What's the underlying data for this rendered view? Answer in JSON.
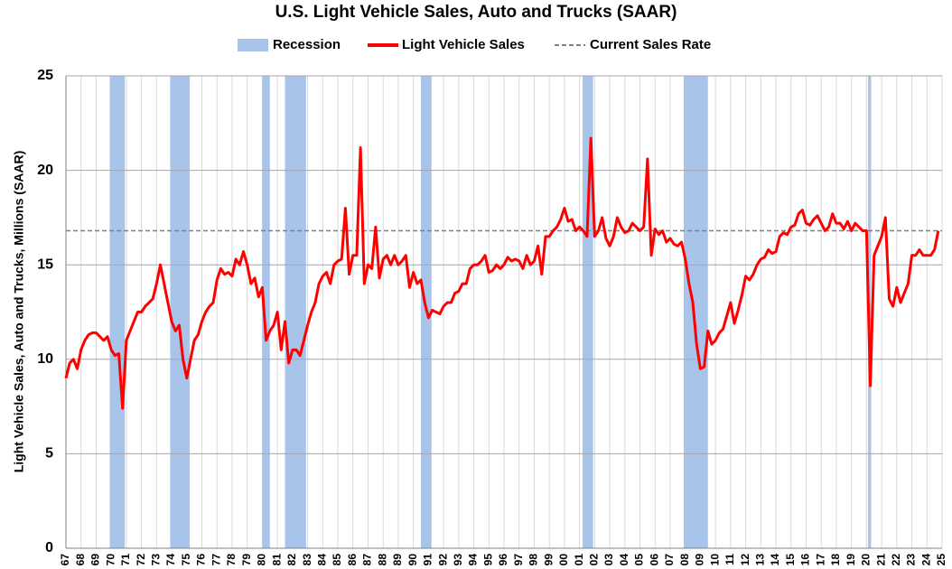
{
  "chart_data": {
    "type": "line",
    "title": "U.S. Light Vehicle Sales, Auto and Trucks (SAAR)",
    "y_label": "Light Vehicle Sales, Auto and Trucks, Millions (SAAR)",
    "ylim": [
      0,
      25
    ],
    "yticks": [
      0,
      5,
      10,
      15,
      20,
      25
    ],
    "grid": true,
    "xlim": [
      1967,
      2025
    ],
    "xticks": [
      {
        "value": 1967,
        "label": "67"
      },
      {
        "value": 1968,
        "label": "68"
      },
      {
        "value": 1969,
        "label": "69"
      },
      {
        "value": 1970,
        "label": "70"
      },
      {
        "value": 1971,
        "label": "71"
      },
      {
        "value": 1972,
        "label": "72"
      },
      {
        "value": 1973,
        "label": "73"
      },
      {
        "value": 1974,
        "label": "74"
      },
      {
        "value": 1975,
        "label": "75"
      },
      {
        "value": 1976,
        "label": "76"
      },
      {
        "value": 1977,
        "label": "77"
      },
      {
        "value": 1978,
        "label": "78"
      },
      {
        "value": 1979,
        "label": "79"
      },
      {
        "value": 1980,
        "label": "80"
      },
      {
        "value": 1981,
        "label": "81"
      },
      {
        "value": 1982,
        "label": "82"
      },
      {
        "value": 1983,
        "label": "83"
      },
      {
        "value": 1984,
        "label": "84"
      },
      {
        "value": 1985,
        "label": "85"
      },
      {
        "value": 1986,
        "label": "86"
      },
      {
        "value": 1987,
        "label": "87"
      },
      {
        "value": 1988,
        "label": "88"
      },
      {
        "value": 1989,
        "label": "89"
      },
      {
        "value": 1990,
        "label": "90"
      },
      {
        "value": 1991,
        "label": "91"
      },
      {
        "value": 1992,
        "label": "92"
      },
      {
        "value": 1993,
        "label": "93"
      },
      {
        "value": 1994,
        "label": "94"
      },
      {
        "value": 1995,
        "label": "95"
      },
      {
        "value": 1996,
        "label": "96"
      },
      {
        "value": 1997,
        "label": "97"
      },
      {
        "value": 1998,
        "label": "98"
      },
      {
        "value": 1999,
        "label": "99"
      },
      {
        "value": 2000,
        "label": "00"
      },
      {
        "value": 2001,
        "label": "01"
      },
      {
        "value": 2002,
        "label": "02"
      },
      {
        "value": 2003,
        "label": "03"
      },
      {
        "value": 2004,
        "label": "04"
      },
      {
        "value": 2005,
        "label": "05"
      },
      {
        "value": 2006,
        "label": "06"
      },
      {
        "value": 2007,
        "label": "07"
      },
      {
        "value": 2008,
        "label": "08"
      },
      {
        "value": 2009,
        "label": "09"
      },
      {
        "value": 2010,
        "label": "10"
      },
      {
        "value": 2011,
        "label": "11"
      },
      {
        "value": 2012,
        "label": "12"
      },
      {
        "value": 2013,
        "label": "13"
      },
      {
        "value": 2014,
        "label": "14"
      },
      {
        "value": 2015,
        "label": "15"
      },
      {
        "value": 2016,
        "label": "16"
      },
      {
        "value": 2017,
        "label": "17"
      },
      {
        "value": 2018,
        "label": "18"
      },
      {
        "value": 2019,
        "label": "19"
      },
      {
        "value": 2020,
        "label": "20"
      },
      {
        "value": 2021,
        "label": "21"
      },
      {
        "value": 2022,
        "label": "22"
      },
      {
        "value": 2023,
        "label": "23"
      },
      {
        "value": 2024,
        "label": "24"
      },
      {
        "value": 2025,
        "label": "25"
      }
    ],
    "recession_name": "Recession",
    "recession_color": "#a9c4eb",
    "recessions": [
      [
        1969.9,
        1970.9
      ],
      [
        1973.9,
        1975.2
      ],
      [
        1980.0,
        1980.5
      ],
      [
        1981.5,
        1982.9
      ],
      [
        1990.5,
        1991.2
      ],
      [
        2001.2,
        2001.9
      ],
      [
        2007.9,
        2009.5
      ],
      [
        2020.1,
        2020.3
      ]
    ],
    "reference_line": {
      "name": "Current Sales Rate",
      "value": 16.8,
      "color": "#808080"
    },
    "x": [
      1967,
      1967.25,
      1967.5,
      1967.75,
      1968,
      1968.25,
      1968.5,
      1968.75,
      1969,
      1969.25,
      1969.5,
      1969.75,
      1970,
      1970.25,
      1970.5,
      1970.75,
      1971,
      1971.25,
      1971.5,
      1971.75,
      1972,
      1972.25,
      1972.5,
      1972.75,
      1973,
      1973.25,
      1973.5,
      1973.75,
      1974,
      1974.25,
      1974.5,
      1974.75,
      1975,
      1975.25,
      1975.5,
      1975.75,
      1976,
      1976.25,
      1976.5,
      1976.75,
      1977,
      1977.25,
      1977.5,
      1977.75,
      1978,
      1978.25,
      1978.5,
      1978.75,
      1979,
      1979.25,
      1979.5,
      1979.75,
      1980,
      1980.25,
      1980.5,
      1980.75,
      1981,
      1981.25,
      1981.5,
      1981.75,
      1982,
      1982.25,
      1982.5,
      1982.75,
      1983,
      1983.25,
      1983.5,
      1983.75,
      1984,
      1984.25,
      1984.5,
      1984.75,
      1985,
      1985.25,
      1985.5,
      1985.75,
      1986,
      1986.25,
      1986.5,
      1986.75,
      1987,
      1987.25,
      1987.5,
      1987.75,
      1988,
      1988.25,
      1988.5,
      1988.75,
      1989,
      1989.25,
      1989.5,
      1989.75,
      1990,
      1990.25,
      1990.5,
      1990.75,
      1991,
      1991.25,
      1991.5,
      1991.75,
      1992,
      1992.25,
      1992.5,
      1992.75,
      1993,
      1993.25,
      1993.5,
      1993.75,
      1994,
      1994.25,
      1994.5,
      1994.75,
      1995,
      1995.25,
      1995.5,
      1995.75,
      1996,
      1996.25,
      1996.5,
      1996.75,
      1997,
      1997.25,
      1997.5,
      1997.75,
      1998,
      1998.25,
      1998.5,
      1998.75,
      1999,
      1999.25,
      1999.5,
      1999.75,
      2000,
      2000.25,
      2000.5,
      2000.75,
      2001,
      2001.25,
      2001.5,
      2001.75,
      2002,
      2002.25,
      2002.5,
      2002.75,
      2003,
      2003.25,
      2003.5,
      2003.75,
      2004,
      2004.25,
      2004.5,
      2004.75,
      2005,
      2005.25,
      2005.5,
      2005.75,
      2006,
      2006.25,
      2006.5,
      2006.75,
      2007,
      2007.25,
      2007.5,
      2007.75,
      2008,
      2008.25,
      2008.5,
      2008.75,
      2009,
      2009.25,
      2009.5,
      2009.75,
      2010,
      2010.25,
      2010.5,
      2010.75,
      2011,
      2011.25,
      2011.5,
      2011.75,
      2012,
      2012.25,
      2012.5,
      2012.75,
      2013,
      2013.25,
      2013.5,
      2013.75,
      2014,
      2014.25,
      2014.5,
      2014.75,
      2015,
      2015.25,
      2015.5,
      2015.75,
      2016,
      2016.25,
      2016.5,
      2016.75,
      2017,
      2017.25,
      2017.5,
      2017.75,
      2018,
      2018.25,
      2018.5,
      2018.75,
      2019,
      2019.25,
      2019.5,
      2019.75,
      2020,
      2020.25,
      2020.5,
      2020.75,
      2021,
      2021.25,
      2021.5,
      2021.75,
      2022,
      2022.25,
      2022.5,
      2022.75,
      2023,
      2023.25,
      2023.5,
      2023.75,
      2024,
      2024.25,
      2024.5,
      2024.75
    ],
    "series": [
      {
        "name": "Light Vehicle Sales",
        "color": "#ff0000",
        "values": [
          9.0,
          9.8,
          10.0,
          9.5,
          10.5,
          11.0,
          11.3,
          11.4,
          11.4,
          11.2,
          11.0,
          11.2,
          10.5,
          10.2,
          10.3,
          7.4,
          11.0,
          11.5,
          12.0,
          12.5,
          12.5,
          12.8,
          13.0,
          13.2,
          14.0,
          15.0,
          14.0,
          13.0,
          12.0,
          11.5,
          11.8,
          10.0,
          9.0,
          10.0,
          11.0,
          11.3,
          12.0,
          12.5,
          12.8,
          13.0,
          14.2,
          14.8,
          14.5,
          14.6,
          14.4,
          15.3,
          15.0,
          15.7,
          15.0,
          14.0,
          14.3,
          13.3,
          13.8,
          11.0,
          11.5,
          11.8,
          12.5,
          10.5,
          12.0,
          9.8,
          10.5,
          10.5,
          10.2,
          11.0,
          11.8,
          12.5,
          13.0,
          14.0,
          14.4,
          14.6,
          14.0,
          15.0,
          15.2,
          15.3,
          18.0,
          14.5,
          15.5,
          15.5,
          21.2,
          14.0,
          15.0,
          14.8,
          17.0,
          14.3,
          15.3,
          15.5,
          15.0,
          15.5,
          15.0,
          15.2,
          15.5,
          13.8,
          14.6,
          14.0,
          14.2,
          13.0,
          12.2,
          12.6,
          12.5,
          12.4,
          12.8,
          13.0,
          13.0,
          13.5,
          13.6,
          14.0,
          14.0,
          14.8,
          15.0,
          15.0,
          15.2,
          15.5,
          14.6,
          14.7,
          15.0,
          14.8,
          15.0,
          15.4,
          15.2,
          15.3,
          15.2,
          14.8,
          15.5,
          15.0,
          15.2,
          16.0,
          14.5,
          16.5,
          16.5,
          16.8,
          17.0,
          17.4,
          18.0,
          17.3,
          17.4,
          16.8,
          17.0,
          16.8,
          16.5,
          21.7,
          16.5,
          16.8,
          17.5,
          16.4,
          16.0,
          16.5,
          17.5,
          17.0,
          16.7,
          16.8,
          17.2,
          17.0,
          16.8,
          17.0,
          20.6,
          15.5,
          16.9,
          16.6,
          16.8,
          16.2,
          16.4,
          16.1,
          16.0,
          16.2,
          15.3,
          14.0,
          13.0,
          10.8,
          9.5,
          9.6,
          11.5,
          10.8,
          11.0,
          11.4,
          11.6,
          12.3,
          13.0,
          11.9,
          12.6,
          13.4,
          14.4,
          14.2,
          14.5,
          15.0,
          15.3,
          15.4,
          15.8,
          15.6,
          15.7,
          16.5,
          16.7,
          16.6,
          17.0,
          17.1,
          17.7,
          17.9,
          17.2,
          17.1,
          17.4,
          17.6,
          17.2,
          16.8,
          17.0,
          17.7,
          17.2,
          17.2,
          16.9,
          17.3,
          16.8,
          17.2,
          17.0,
          16.8,
          16.8,
          8.6,
          15.5,
          16.0,
          16.5,
          17.5,
          13.2,
          12.8,
          13.8,
          13.0,
          13.5,
          14.0,
          15.5,
          15.5,
          15.8,
          15.5,
          15.5,
          15.5,
          15.8,
          16.8
        ]
      }
    ]
  }
}
